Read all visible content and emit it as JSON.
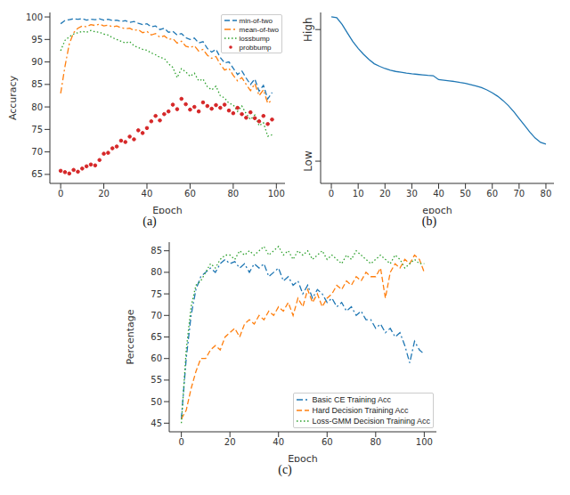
{
  "chart_data": [
    {
      "type": "line",
      "title": "(a)",
      "x_label": "Epoch",
      "y_label": "Accuracy",
      "x": [
        0,
        2,
        4,
        6,
        8,
        10,
        12,
        14,
        16,
        18,
        20,
        22,
        24,
        26,
        28,
        30,
        32,
        34,
        36,
        38,
        40,
        42,
        44,
        46,
        48,
        50,
        52,
        54,
        56,
        58,
        60,
        62,
        64,
        66,
        68,
        70,
        72,
        74,
        76,
        78,
        80,
        82,
        84,
        86,
        88,
        90,
        92,
        94,
        96,
        98
      ],
      "series": [
        {
          "name": "min-of-two",
          "color": "#1f77b4",
          "line_style": "dashed",
          "values": [
            98.5,
            99.2,
            99.4,
            99.6,
            99.5,
            99.6,
            99.3,
            99.5,
            99.4,
            99.6,
            99.3,
            99.5,
            99.2,
            99.3,
            99.0,
            99.2,
            98.8,
            99.0,
            98.6,
            98.3,
            98.5,
            97.8,
            98.0,
            97.2,
            97.5,
            96.6,
            96.8,
            96.0,
            96.3,
            95.4,
            95.0,
            95.3,
            94.2,
            94.5,
            93.0,
            92.2,
            92.8,
            91.0,
            89.8,
            90.0,
            88.6,
            87.2,
            88.0,
            86.4,
            85.0,
            86.2,
            83.5,
            84.8,
            81.8,
            83.2
          ]
        },
        {
          "name": "mean-of-two",
          "color": "#ff7f0e",
          "line_style": "dashdot",
          "values": [
            83,
            89,
            94,
            96.5,
            97.5,
            98,
            97.8,
            98.3,
            98.1,
            98.4,
            98,
            98.2,
            97.8,
            98,
            97.6,
            97.4,
            97.5,
            97,
            97.2,
            96.5,
            96.8,
            96,
            96.3,
            95.5,
            95.8,
            95,
            95.2,
            94.2,
            94.6,
            93.5,
            93.2,
            93.6,
            92.4,
            92.8,
            91.5,
            90.8,
            91.2,
            89.5,
            88.2,
            88.6,
            87,
            85.8,
            86.5,
            85,
            83.6,
            85.2,
            82.5,
            83.8,
            80.8,
            81.5
          ]
        },
        {
          "name": "lossbump",
          "color": "#2ca02c",
          "line_style": "dotted",
          "values": [
            92.5,
            94.8,
            95.6,
            96.2,
            96.5,
            96.8,
            96.6,
            97,
            96.7,
            96.6,
            96.2,
            96,
            95.4,
            95,
            94.6,
            94.2,
            94.5,
            93.6,
            93.2,
            92.8,
            92.6,
            92,
            91.6,
            91,
            90.8,
            89.6,
            88.8,
            86.5,
            88.5,
            87.8,
            86.8,
            87.5,
            85.8,
            86.2,
            84.5,
            83.8,
            84.6,
            82.5,
            82,
            80.8,
            80.5,
            79,
            80.2,
            78.5,
            77.2,
            78.2,
            75.8,
            76.5,
            73.5,
            73.8
          ]
        },
        {
          "name": "probbump",
          "color": "#d62728",
          "type": "scatter",
          "marker": "point",
          "values": [
            65.8,
            65.5,
            65.2,
            66,
            65.6,
            66.3,
            66.8,
            67.2,
            67,
            68.2,
            69.6,
            69.8,
            70.8,
            71.2,
            72.5,
            72.2,
            73.4,
            72.8,
            74.8,
            74.2,
            75.3,
            76.8,
            78,
            77,
            78.4,
            79,
            80.5,
            79.5,
            81.8,
            80.6,
            79.4,
            80,
            79,
            81,
            80.2,
            79.6,
            80.4,
            79.8,
            80.5,
            79.2,
            78.6,
            79.8,
            78.4,
            77.6,
            78.8,
            77.5,
            76.8,
            78,
            76.2,
            77.2
          ]
        }
      ],
      "xlim": [
        -5,
        104
      ],
      "ylim": [
        63,
        101
      ],
      "xticks": [
        0,
        20,
        40,
        60,
        80,
        100
      ],
      "yticks": [
        65,
        70,
        75,
        80,
        85,
        90,
        95,
        100
      ],
      "legend": "upper right",
      "grid": false
    },
    {
      "type": "line",
      "title": "(b)",
      "x_label": "epoch",
      "x": [
        0,
        2,
        4,
        6,
        8,
        10,
        12,
        14,
        16,
        18,
        20,
        22,
        24,
        26,
        28,
        30,
        32,
        34,
        36,
        38,
        40,
        42,
        44,
        46,
        48,
        50,
        52,
        54,
        56,
        58,
        60,
        62,
        64,
        66,
        68,
        70,
        72,
        74,
        76,
        78,
        80
      ],
      "series": [
        {
          "color": "#1f77b4",
          "line_style": "solid",
          "values": [
            0.975,
            0.97,
            0.93,
            0.88,
            0.83,
            0.79,
            0.755,
            0.725,
            0.7,
            0.685,
            0.672,
            0.662,
            0.655,
            0.65,
            0.645,
            0.641,
            0.638,
            0.635,
            0.632,
            0.63,
            0.607,
            0.604,
            0.6,
            0.596,
            0.59,
            0.585,
            0.578,
            0.57,
            0.56,
            0.547,
            0.53,
            0.51,
            0.485,
            0.455,
            0.42,
            0.38,
            0.34,
            0.3,
            0.265,
            0.24,
            0.23
          ]
        }
      ],
      "xlim": [
        -4,
        83
      ],
      "ylim": [
        0,
        1
      ],
      "xticks": [
        0,
        10,
        20,
        30,
        40,
        50,
        60,
        70,
        80
      ],
      "yticks": [
        {
          "value": 0.13,
          "label": "Low"
        },
        {
          "value": 0.9,
          "label": "High"
        }
      ],
      "grid": false
    },
    {
      "type": "line",
      "title": "(c)",
      "x_label": "Epoch",
      "y_label": "Percentage",
      "x": [
        0,
        2,
        4,
        6,
        8,
        10,
        12,
        14,
        16,
        18,
        20,
        22,
        24,
        26,
        28,
        30,
        32,
        34,
        36,
        38,
        40,
        42,
        44,
        46,
        48,
        50,
        52,
        54,
        56,
        58,
        60,
        62,
        64,
        66,
        68,
        70,
        72,
        74,
        76,
        78,
        80,
        82,
        84,
        86,
        88,
        90,
        92,
        94,
        96,
        98,
        100
      ],
      "series": [
        {
          "name": "Basic CE Training Acc",
          "color": "#1f77b4",
          "line_style": "dashdot",
          "values": [
            46,
            60,
            70,
            76,
            79,
            80,
            81,
            80,
            82,
            83,
            82,
            82.5,
            81,
            82,
            80,
            82,
            81,
            82,
            79,
            80,
            81,
            78,
            79,
            77,
            78,
            75,
            77,
            74,
            76,
            75,
            73,
            74,
            72,
            73,
            71,
            72,
            70,
            71,
            69,
            69,
            67,
            68,
            66,
            67,
            65,
            66,
            63,
            59,
            64,
            62,
            61
          ]
        },
        {
          "name": "Hard Decision Training Acc",
          "color": "#ff7f0e",
          "line_style": "dashed",
          "values": [
            46,
            48,
            53,
            57,
            60,
            60,
            62,
            63,
            62,
            65,
            66,
            67,
            65,
            68,
            69,
            68,
            70,
            69,
            71,
            70,
            72,
            71,
            73,
            70,
            74,
            72,
            76,
            73,
            75,
            72,
            74,
            75,
            77,
            76,
            78,
            77,
            79,
            78,
            80,
            79,
            79,
            81,
            74,
            80,
            82,
            81,
            83,
            82,
            84,
            83,
            80
          ]
        },
        {
          "name": "Loss-GMM Decision Training Acc",
          "color": "#2ca02c",
          "line_style": "dotted",
          "values": [
            45,
            62,
            72,
            77,
            78,
            80,
            82,
            81,
            83,
            84,
            84,
            83,
            85,
            84,
            85,
            84,
            85,
            86,
            84,
            85,
            86,
            84,
            85,
            83,
            85,
            84,
            85,
            83,
            84,
            85,
            83,
            84,
            83,
            82,
            84,
            83,
            85,
            84,
            83,
            82,
            83,
            84,
            83,
            82,
            84,
            83,
            81,
            82,
            83,
            82,
            82
          ]
        }
      ],
      "xlim": [
        -5,
        105
      ],
      "ylim": [
        43,
        87
      ],
      "xticks": [
        0,
        20,
        40,
        60,
        80,
        100
      ],
      "yticks": [
        45,
        50,
        55,
        60,
        65,
        70,
        75,
        80,
        85
      ],
      "legend": "lower right",
      "grid": false
    }
  ]
}
